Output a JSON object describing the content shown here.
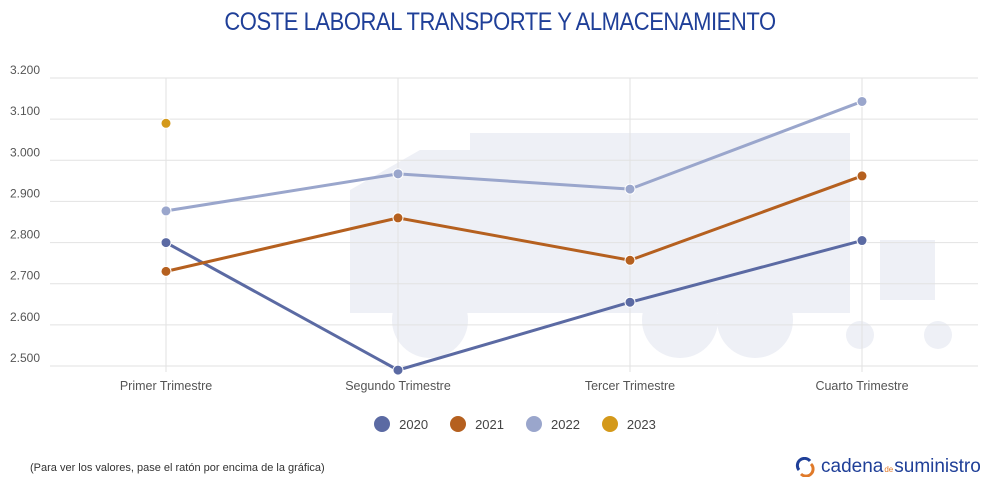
{
  "chart_data": {
    "type": "line",
    "title": "COSTE LABORAL TRANSPORTE Y ALMACENAMIENTO",
    "categories": [
      "Primer Trimestre",
      "Segundo Trimestre",
      "Tercer Trimestre",
      "Cuarto Trimestre"
    ],
    "yticks": [
      "2.500",
      "2.600",
      "2.700",
      "2.800",
      "2.900",
      "3.000",
      "3.100",
      "3.200"
    ],
    "ytick_values": [
      2500,
      2600,
      2700,
      2800,
      2900,
      3000,
      3100,
      3200
    ],
    "ylim": [
      2500,
      3200
    ],
    "grid": true,
    "legend_position": "bottom",
    "series": [
      {
        "name": "2020",
        "color": "#5b6aa3",
        "values": [
          2800,
          2490,
          2655,
          2805
        ]
      },
      {
        "name": "2021",
        "color": "#b5601f",
        "values": [
          2730,
          2860,
          2757,
          2962
        ]
      },
      {
        "name": "2022",
        "color": "#9aa6cc",
        "values": [
          2877,
          2967,
          2930,
          3143
        ]
      },
      {
        "name": "2023",
        "color": "#d4991a",
        "values": [
          3090,
          null,
          null,
          null
        ]
      }
    ]
  },
  "note": "(Para ver los valores, pase el ratón por encima de la gráfica)",
  "logo": {
    "part1": "cadena",
    "part2": "de",
    "part3": "suministro"
  }
}
